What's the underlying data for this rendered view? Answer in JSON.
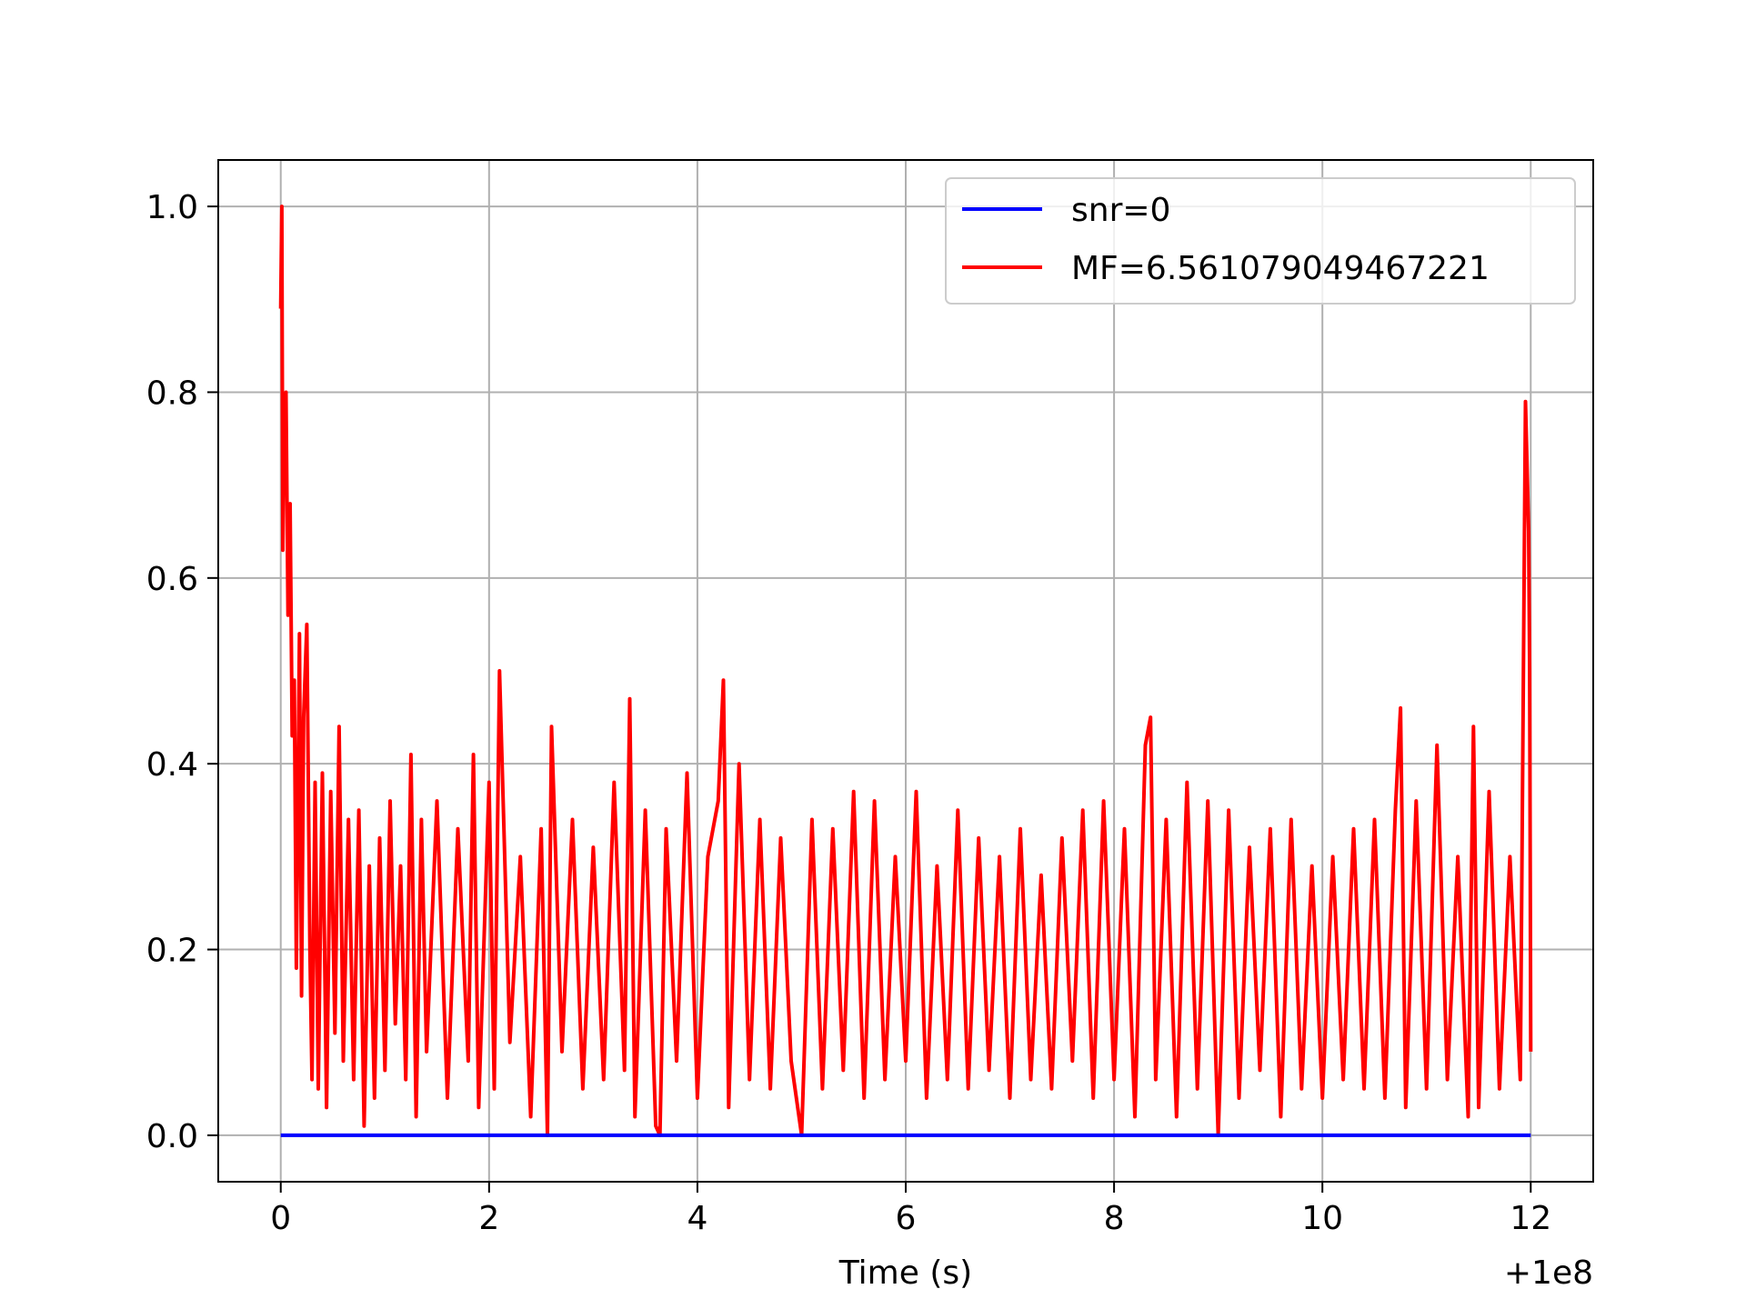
{
  "chart_data": {
    "type": "line",
    "title": "",
    "xlabel": "Time (s)",
    "ylabel": "",
    "x_offset_label": "+1e8",
    "xlim": [
      -0.6,
      12.6
    ],
    "ylim": [
      -0.05,
      1.05
    ],
    "x_ticks": [
      0,
      2,
      4,
      6,
      8,
      10,
      12
    ],
    "x_tick_labels": [
      "0",
      "2",
      "4",
      "6",
      "8",
      "10",
      "12"
    ],
    "y_ticks": [
      0.0,
      0.2,
      0.4,
      0.6,
      0.8,
      1.0
    ],
    "y_tick_labels": [
      "0.0",
      "0.2",
      "0.4",
      "0.6",
      "0.8",
      "1.0"
    ],
    "grid": true,
    "legend_position": "top-right",
    "series": [
      {
        "name": "snr=0",
        "color": "#0000ff",
        "x": [
          0,
          12
        ],
        "y": [
          0.0,
          0.0
        ]
      },
      {
        "name": "MF=6.561079049467221",
        "color": "#ff0000",
        "x": [
          0.0,
          0.01,
          0.02,
          0.03,
          0.05,
          0.07,
          0.09,
          0.11,
          0.13,
          0.15,
          0.18,
          0.2,
          0.22,
          0.25,
          0.28,
          0.3,
          0.33,
          0.36,
          0.4,
          0.44,
          0.48,
          0.52,
          0.56,
          0.6,
          0.65,
          0.7,
          0.75,
          0.8,
          0.85,
          0.9,
          0.95,
          1.0,
          1.05,
          1.1,
          1.15,
          1.2,
          1.25,
          1.3,
          1.35,
          1.4,
          1.5,
          1.6,
          1.7,
          1.8,
          1.85,
          1.9,
          2.0,
          2.05,
          2.1,
          2.2,
          2.3,
          2.4,
          2.5,
          2.56,
          2.6,
          2.7,
          2.8,
          2.9,
          3.0,
          3.1,
          3.2,
          3.3,
          3.35,
          3.4,
          3.5,
          3.6,
          3.64,
          3.7,
          3.8,
          3.9,
          4.0,
          4.1,
          4.2,
          4.25,
          4.3,
          4.4,
          4.5,
          4.6,
          4.7,
          4.8,
          4.9,
          5.0,
          5.1,
          5.2,
          5.3,
          5.4,
          5.5,
          5.6,
          5.7,
          5.8,
          5.9,
          6.0,
          6.1,
          6.2,
          6.3,
          6.4,
          6.5,
          6.6,
          6.7,
          6.8,
          6.9,
          7.0,
          7.1,
          7.2,
          7.3,
          7.4,
          7.5,
          7.6,
          7.7,
          7.8,
          7.9,
          8.0,
          8.1,
          8.2,
          8.3,
          8.35,
          8.4,
          8.5,
          8.6,
          8.7,
          8.8,
          8.9,
          9.0,
          9.1,
          9.2,
          9.3,
          9.4,
          9.5,
          9.6,
          9.7,
          9.8,
          9.9,
          10.0,
          10.1,
          10.2,
          10.3,
          10.4,
          10.5,
          10.6,
          10.7,
          10.75,
          10.8,
          10.9,
          11.0,
          11.1,
          11.2,
          11.3,
          11.4,
          11.45,
          11.5,
          11.6,
          11.7,
          11.8,
          11.9,
          11.95,
          11.98,
          11.99,
          12.0
        ],
        "y": [
          0.89,
          1.0,
          0.63,
          0.77,
          0.8,
          0.56,
          0.68,
          0.43,
          0.49,
          0.18,
          0.54,
          0.15,
          0.45,
          0.55,
          0.2,
          0.06,
          0.38,
          0.05,
          0.39,
          0.03,
          0.37,
          0.11,
          0.44,
          0.08,
          0.34,
          0.06,
          0.35,
          0.01,
          0.29,
          0.04,
          0.32,
          0.07,
          0.36,
          0.12,
          0.29,
          0.06,
          0.41,
          0.02,
          0.34,
          0.09,
          0.36,
          0.04,
          0.33,
          0.08,
          0.41,
          0.03,
          0.38,
          0.05,
          0.5,
          0.1,
          0.3,
          0.02,
          0.33,
          0.0,
          0.44,
          0.09,
          0.34,
          0.05,
          0.31,
          0.06,
          0.38,
          0.07,
          0.47,
          0.02,
          0.35,
          0.01,
          0.0,
          0.33,
          0.08,
          0.39,
          0.04,
          0.3,
          0.36,
          0.49,
          0.03,
          0.4,
          0.06,
          0.34,
          0.05,
          0.32,
          0.08,
          0.0,
          0.34,
          0.05,
          0.33,
          0.07,
          0.37,
          0.04,
          0.36,
          0.06,
          0.3,
          0.08,
          0.37,
          0.04,
          0.29,
          0.06,
          0.35,
          0.05,
          0.32,
          0.07,
          0.3,
          0.04,
          0.33,
          0.06,
          0.28,
          0.05,
          0.32,
          0.08,
          0.35,
          0.04,
          0.36,
          0.06,
          0.33,
          0.02,
          0.42,
          0.45,
          0.06,
          0.34,
          0.02,
          0.38,
          0.05,
          0.36,
          0.0,
          0.35,
          0.04,
          0.31,
          0.07,
          0.33,
          0.02,
          0.34,
          0.05,
          0.29,
          0.04,
          0.3,
          0.06,
          0.33,
          0.05,
          0.34,
          0.04,
          0.35,
          0.46,
          0.03,
          0.36,
          0.05,
          0.42,
          0.06,
          0.3,
          0.02,
          0.44,
          0.03,
          0.37,
          0.05,
          0.3,
          0.06,
          0.79,
          0.65,
          0.5,
          0.09
        ]
      }
    ]
  }
}
